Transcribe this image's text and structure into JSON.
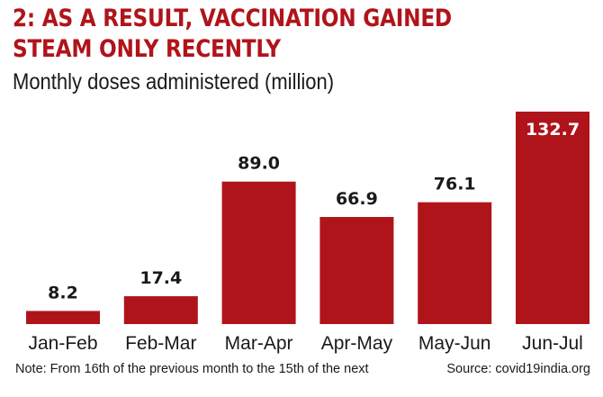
{
  "chart_data": {
    "type": "bar",
    "title": "2: AS A RESULT, VACCINATION GAINED STEAM ONLY RECENTLY",
    "title_lines": [
      "2: AS A RESULT, VACCINATION GAINED",
      "STEAM ONLY RECENTLY"
    ],
    "subtitle": "Monthly doses administered (million)",
    "categories": [
      "Jan-Feb",
      "Feb-Mar",
      "Mar-Apr",
      "Apr-May",
      "May-Jun",
      "Jun-Jul"
    ],
    "values": [
      8.2,
      17.4,
      89.0,
      66.9,
      76.1,
      132.7
    ],
    "value_labels": [
      "8.2",
      "17.4",
      "89.0",
      "66.9",
      "76.1",
      "132.7"
    ],
    "ylim": [
      0,
      132.7
    ],
    "grid": false,
    "bar_color": "#b0141b",
    "note": "Note: From 16th of the previous month to the 15th of the next",
    "source": "Source: covid19india.org"
  }
}
